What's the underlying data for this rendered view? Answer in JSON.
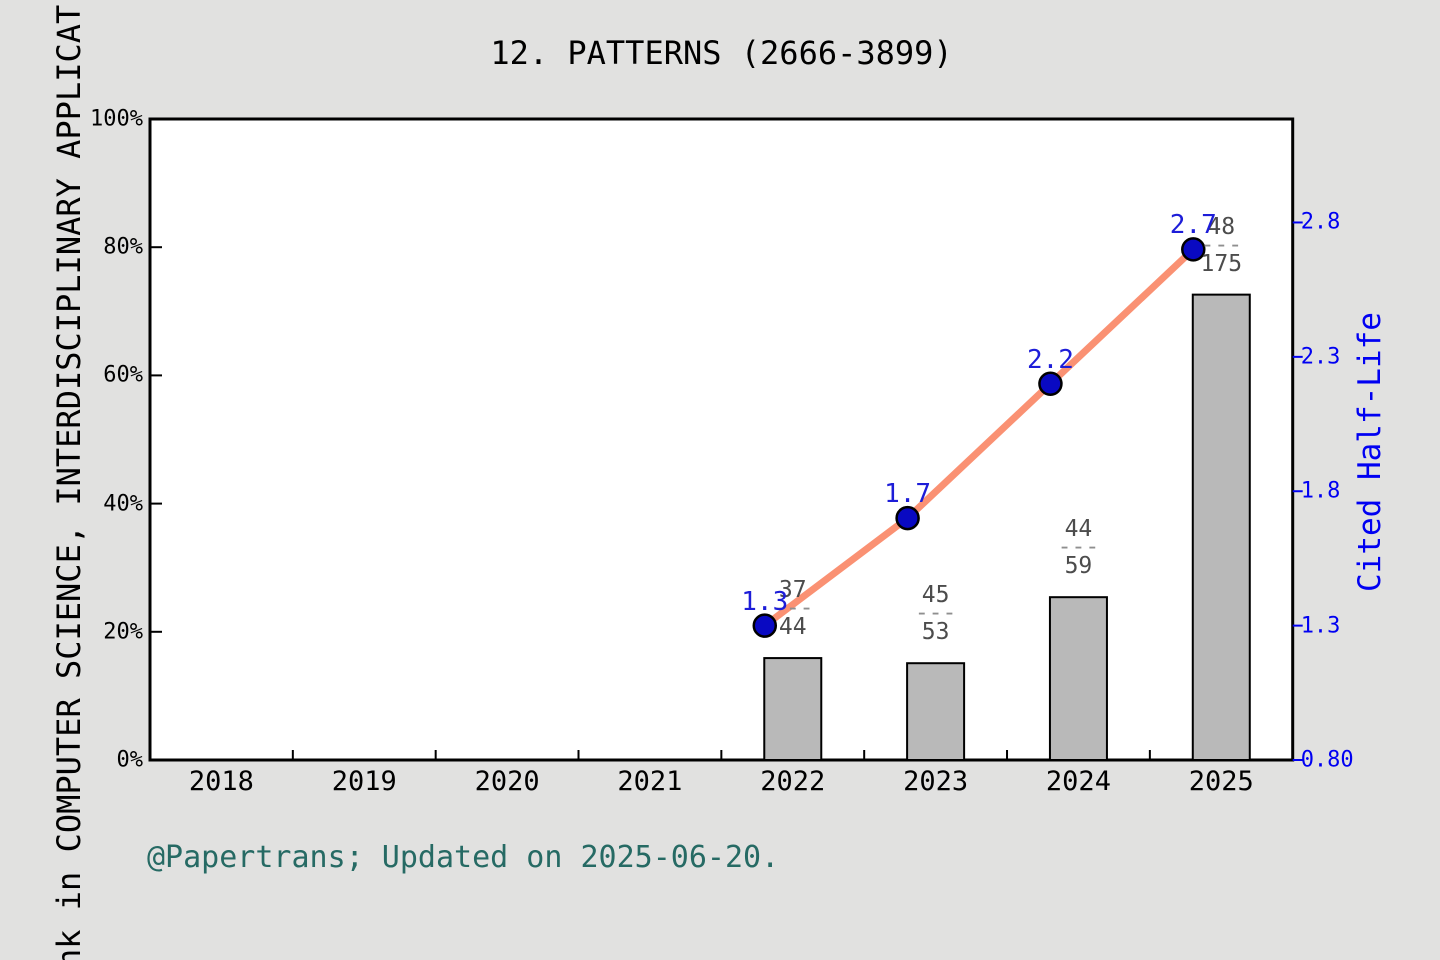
{
  "title": "12. PATTERNS (2666-3899)",
  "footer": "@Papertrans; Updated on 2025-06-20.",
  "y_axis_label_visible": "nk in COMPUTER SCIENCE, INTERDISCIPLINARY APPLICAT",
  "colors": {
    "background": "#e1e1e0",
    "plot_background": "#ffffff",
    "axis": "#000000",
    "bar_fill": "#b9b9b9",
    "bar_border": "#000000",
    "line": "#fa9173",
    "marker_fill": "#0909c2",
    "marker_border": "#000000",
    "value_label": "#1d1dd8",
    "y2_axis": "#0000f2",
    "fraction_text": "#4c4c4c",
    "fraction_dash": "#8f8f8f",
    "footer_text": "#266a64"
  },
  "chart_data": {
    "type": "bar+line dual-axis",
    "title": "12. PATTERNS (2666-3899)",
    "categories": [
      "2018",
      "2019",
      "2020",
      "2021",
      "2022",
      "2023",
      "2024",
      "2025"
    ],
    "grid": "off",
    "left_axis": {
      "tick_labels": [
        "0%",
        "20%",
        "40%",
        "60%",
        "80%",
        "100%"
      ],
      "tick_values": [
        0,
        20,
        40,
        60,
        80,
        100
      ],
      "range": [
        0,
        100
      ]
    },
    "right_axis": {
      "label": "Cited Half-Life",
      "tick_labels": [
        "0.80",
        "1.3",
        "1.8",
        "2.3",
        "2.8"
      ],
      "tick_values": [
        0.8,
        1.3,
        1.8,
        2.3,
        2.8
      ],
      "range": [
        0.8,
        3.185
      ]
    },
    "series": [
      {
        "name": "rank-percentile-bars",
        "type": "bar",
        "axis": "left",
        "points": [
          {
            "category": "2022",
            "percent": 15.9,
            "fraction_numerator": "37",
            "fraction_denominator": "44"
          },
          {
            "category": "2023",
            "percent": 15.1,
            "fraction_numerator": "45",
            "fraction_denominator": "53"
          },
          {
            "category": "2024",
            "percent": 25.4,
            "fraction_numerator": "44",
            "fraction_denominator": "59"
          },
          {
            "category": "2025",
            "percent": 72.6,
            "fraction_numerator": "48",
            "fraction_denominator": "175"
          }
        ]
      },
      {
        "name": "cited-half-life-line",
        "type": "line",
        "axis": "right",
        "points": [
          {
            "category": "2022",
            "value": 1.3,
            "label": "1.3"
          },
          {
            "category": "2023",
            "value": 1.7,
            "label": "1.7"
          },
          {
            "category": "2024",
            "value": 2.2,
            "label": "2.2"
          },
          {
            "category": "2025",
            "value": 2.7,
            "label": "2.7"
          }
        ]
      }
    ]
  }
}
